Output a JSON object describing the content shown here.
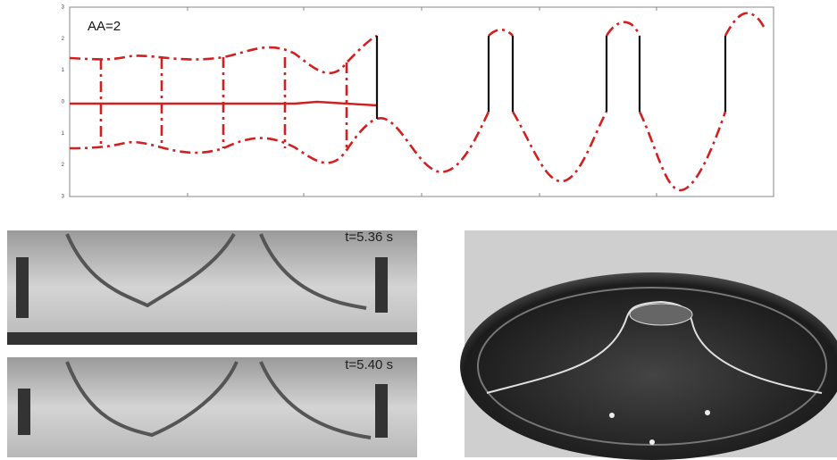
{
  "plot": {
    "annotation": "AA=2",
    "yticks": [
      "3",
      "2",
      "1",
      "0",
      "1",
      "2",
      "3"
    ]
  },
  "photos": [
    {
      "timestamp": "t=5.36 s"
    },
    {
      "timestamp": "t=5.40 s"
    }
  ]
}
